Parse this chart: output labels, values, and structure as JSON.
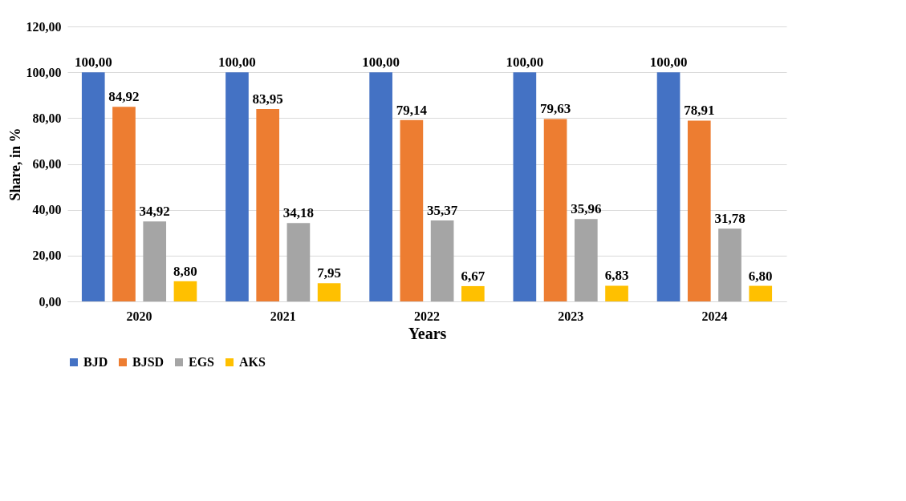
{
  "chart_data": {
    "type": "bar",
    "xlabel": "Years",
    "ylabel": "Share, in %",
    "categories": [
      "2020",
      "2021",
      "2022",
      "2023",
      "2024"
    ],
    "series": [
      {
        "name": "BJD",
        "color": "#4472c4",
        "values": [
          100,
          100,
          100,
          100,
          100
        ],
        "value_labels": [
          "100,00",
          "100,00",
          "100,00",
          "100,00",
          "100,00"
        ]
      },
      {
        "name": "BJSD",
        "color": "#ed7d31",
        "values": [
          84.92,
          83.95,
          79.14,
          79.63,
          78.91
        ],
        "value_labels": [
          "84,92",
          "83,95",
          "79,14",
          "79,63",
          "78,91"
        ]
      },
      {
        "name": "EGS",
        "color": "#a5a5a5",
        "values": [
          34.92,
          34.18,
          35.37,
          35.96,
          31.78
        ],
        "value_labels": [
          "34,92",
          "34,18",
          "35,37",
          "35,96",
          "31,78"
        ]
      },
      {
        "name": "AKS",
        "color": "#ffc000",
        "values": [
          8.8,
          7.95,
          6.67,
          6.83,
          6.8
        ],
        "value_labels": [
          "8,80",
          "7,95",
          "6,67",
          "6,83",
          "6,80"
        ]
      }
    ],
    "ylim": [
      0,
      120
    ],
    "yticks": [
      {
        "value": 0,
        "label": "0,00"
      },
      {
        "value": 20,
        "label": "20,00"
      },
      {
        "value": 40,
        "label": "40,00"
      },
      {
        "value": 60,
        "label": "60,00"
      },
      {
        "value": 80,
        "label": "80,00"
      },
      {
        "value": 100,
        "label": "100,00"
      },
      {
        "value": 120,
        "label": "120,00"
      }
    ],
    "grid": "y",
    "legend": "bottom"
  }
}
